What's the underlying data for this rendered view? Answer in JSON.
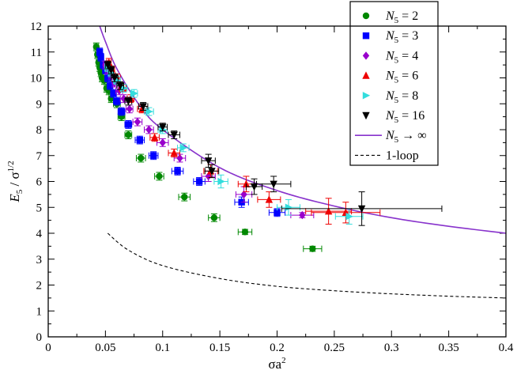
{
  "chart_data": {
    "type": "scatter",
    "title": "",
    "xlabel": "σa",
    "xlabel_sup": "2",
    "ylabel_main": "E",
    "ylabel_sub": "5",
    "ylabel_tail": " / σ",
    "ylabel_sup": "1/2",
    "xlim": [
      0,
      0.4
    ],
    "ylim": [
      0,
      12
    ],
    "xticks": [
      "0",
      "0.05",
      "0.1",
      "0.15",
      "0.2",
      "0.25",
      "0.3",
      "0.35",
      "0.4"
    ],
    "yticks": [
      "0",
      "1",
      "2",
      "3",
      "4",
      "5",
      "6",
      "7",
      "8",
      "9",
      "10",
      "11",
      "12"
    ],
    "legend_position": "top-right",
    "series": [
      {
        "name": "N5 = 2",
        "label": "N",
        "sub": "5",
        "value": " = 2",
        "marker": "circle",
        "color": "#008800",
        "points": [
          [
            0.042,
            11.2
          ],
          [
            0.043,
            10.9
          ],
          [
            0.044,
            10.6
          ],
          [
            0.045,
            10.4
          ],
          [
            0.046,
            10.2
          ],
          [
            0.047,
            10.0
          ],
          [
            0.049,
            9.9
          ],
          [
            0.051,
            9.6
          ],
          [
            0.053,
            9.5
          ],
          [
            0.055,
            9.2
          ],
          [
            0.06,
            9.0
          ],
          [
            0.064,
            8.5
          ],
          [
            0.07,
            7.8
          ],
          [
            0.081,
            6.9
          ],
          [
            0.097,
            6.2
          ],
          [
            0.119,
            5.4
          ],
          [
            0.145,
            4.6
          ],
          [
            0.172,
            4.05
          ],
          [
            0.231,
            3.4
          ]
        ],
        "xerr": [
          0.002,
          0.002,
          0.002,
          0.002,
          0.002,
          0.002,
          0.002,
          0.002,
          0.002,
          0.002,
          0.003,
          0.003,
          0.003,
          0.004,
          0.004,
          0.005,
          0.005,
          0.006,
          0.008
        ],
        "yerr": [
          0.15,
          0.15,
          0.15,
          0.15,
          0.15,
          0.15,
          0.15,
          0.15,
          0.15,
          0.15,
          0.15,
          0.15,
          0.15,
          0.15,
          0.15,
          0.15,
          0.15,
          0.1,
          0.1
        ]
      },
      {
        "name": "N5 = 3",
        "label": "N",
        "sub": "5",
        "value": " = 3",
        "marker": "square",
        "color": "#0000ff",
        "points": [
          [
            0.045,
            11.0
          ],
          [
            0.046,
            10.8
          ],
          [
            0.048,
            10.5
          ],
          [
            0.05,
            10.3
          ],
          [
            0.052,
            10.0
          ],
          [
            0.054,
            9.7
          ],
          [
            0.057,
            9.4
          ],
          [
            0.06,
            9.1
          ],
          [
            0.064,
            8.7
          ],
          [
            0.07,
            8.2
          ],
          [
            0.08,
            7.6
          ],
          [
            0.092,
            7.0
          ],
          [
            0.113,
            6.4
          ],
          [
            0.132,
            6.0
          ],
          [
            0.169,
            5.2
          ],
          [
            0.2,
            4.8
          ]
        ],
        "xerr": [
          0.002,
          0.002,
          0.002,
          0.002,
          0.002,
          0.002,
          0.002,
          0.003,
          0.003,
          0.003,
          0.004,
          0.004,
          0.005,
          0.005,
          0.006,
          0.007
        ],
        "yerr": [
          0.15,
          0.15,
          0.15,
          0.15,
          0.15,
          0.15,
          0.15,
          0.15,
          0.15,
          0.15,
          0.15,
          0.15,
          0.15,
          0.15,
          0.2,
          0.15
        ]
      },
      {
        "name": "N5 = 4",
        "label": "N",
        "sub": "5",
        "value": " = 4",
        "marker": "diamond",
        "color": "#9900cc",
        "points": [
          [
            0.05,
            10.5
          ],
          [
            0.052,
            10.3
          ],
          [
            0.055,
            10.1
          ],
          [
            0.058,
            9.8
          ],
          [
            0.062,
            9.5
          ],
          [
            0.066,
            9.2
          ],
          [
            0.071,
            8.8
          ],
          [
            0.078,
            8.3
          ],
          [
            0.088,
            8.0
          ],
          [
            0.1,
            7.5
          ],
          [
            0.115,
            6.9
          ],
          [
            0.14,
            6.2
          ],
          [
            0.171,
            5.5
          ],
          [
            0.222,
            4.7
          ]
        ],
        "xerr": [
          0.002,
          0.002,
          0.002,
          0.002,
          0.003,
          0.003,
          0.003,
          0.004,
          0.004,
          0.005,
          0.005,
          0.006,
          0.007,
          0.01
        ],
        "yerr": [
          0.15,
          0.15,
          0.15,
          0.15,
          0.15,
          0.15,
          0.15,
          0.15,
          0.15,
          0.15,
          0.15,
          0.2,
          0.3,
          0.1
        ]
      },
      {
        "name": "N5 = 6",
        "label": "N",
        "sub": "5",
        "value": " = 6",
        "marker": "triangle-up",
        "color": "#ee0000",
        "points": [
          [
            0.053,
            10.6
          ],
          [
            0.056,
            10.3
          ],
          [
            0.06,
            10.0
          ],
          [
            0.065,
            9.6
          ],
          [
            0.072,
            9.2
          ],
          [
            0.082,
            8.8
          ],
          [
            0.093,
            7.7
          ],
          [
            0.11,
            7.1
          ],
          [
            0.142,
            6.4
          ],
          [
            0.173,
            5.9
          ],
          [
            0.193,
            5.3
          ],
          [
            0.245,
            4.85
          ],
          [
            0.26,
            4.8
          ]
        ],
        "xerr": [
          0.002,
          0.002,
          0.003,
          0.003,
          0.003,
          0.004,
          0.004,
          0.005,
          0.006,
          0.007,
          0.01,
          0.02,
          0.03
        ],
        "yerr": [
          0.15,
          0.15,
          0.15,
          0.15,
          0.15,
          0.15,
          0.15,
          0.15,
          0.25,
          0.3,
          0.3,
          0.5,
          0.4
        ]
      },
      {
        "name": "N5 = 8",
        "label": "N",
        "sub": "5",
        "value": " = 8",
        "marker": "triangle-right",
        "color": "#33dddd",
        "points": [
          [
            0.052,
            10.4
          ],
          [
            0.055,
            10.2
          ],
          [
            0.06,
            9.9
          ],
          [
            0.066,
            9.6
          ],
          [
            0.075,
            9.4
          ],
          [
            0.088,
            8.7
          ],
          [
            0.1,
            8.0
          ],
          [
            0.118,
            7.3
          ],
          [
            0.151,
            6.0
          ],
          [
            0.21,
            5.0
          ],
          [
            0.263,
            4.65
          ]
        ],
        "xerr": [
          0.002,
          0.002,
          0.003,
          0.003,
          0.003,
          0.004,
          0.004,
          0.005,
          0.006,
          0.01,
          0.012
        ],
        "yerr": [
          0.15,
          0.15,
          0.15,
          0.15,
          0.15,
          0.15,
          0.15,
          0.15,
          0.25,
          0.3,
          0.3
        ]
      },
      {
        "name": "N5 = 16",
        "label": "N",
        "sub": "5",
        "value": " = 16",
        "marker": "triangle-down",
        "color": "#000000",
        "points": [
          [
            0.052,
            10.5
          ],
          [
            0.055,
            10.3
          ],
          [
            0.058,
            10.0
          ],
          [
            0.063,
            9.7
          ],
          [
            0.07,
            9.1
          ],
          [
            0.083,
            8.9
          ],
          [
            0.1,
            8.1
          ],
          [
            0.11,
            7.8
          ],
          [
            0.14,
            6.8
          ],
          [
            0.143,
            6.4
          ],
          [
            0.18,
            5.8
          ],
          [
            0.197,
            5.9
          ],
          [
            0.274,
            4.95
          ]
        ],
        "xerr": [
          0.002,
          0.002,
          0.003,
          0.003,
          0.003,
          0.004,
          0.004,
          0.005,
          0.006,
          0.006,
          0.007,
          0.015,
          0.07
        ],
        "yerr": [
          0.15,
          0.15,
          0.15,
          0.15,
          0.15,
          0.15,
          0.15,
          0.15,
          0.25,
          0.25,
          0.3,
          0.3,
          0.65
        ]
      },
      {
        "name": "N5 → ∞",
        "label": "N",
        "sub": "5",
        "value": " → ∞",
        "marker": "line",
        "color": "#8833cc",
        "curve": {
          "x_from": 0.045,
          "x_to": 0.4,
          "points": [
            [
              0.045,
              12.0
            ],
            [
              0.05,
              11.4
            ],
            [
              0.06,
              10.35
            ],
            [
              0.08,
              8.93
            ],
            [
              0.1,
              8.0
            ],
            [
              0.15,
              6.53
            ],
            [
              0.2,
              5.65
            ],
            [
              0.25,
              5.05
            ],
            [
              0.3,
              4.6
            ],
            [
              0.35,
              4.27
            ],
            [
              0.4,
              4.0
            ]
          ]
        }
      },
      {
        "name": "1-loop",
        "label": "1-loop",
        "sub": "",
        "value": "",
        "marker": "dashed",
        "color": "#000000",
        "curve": {
          "x_from": 0.052,
          "x_to": 0.4,
          "points": [
            [
              0.052,
              4.0
            ],
            [
              0.07,
              3.35
            ],
            [
              0.1,
              2.75
            ],
            [
              0.15,
              2.25
            ],
            [
              0.2,
              1.95
            ],
            [
              0.25,
              1.78
            ],
            [
              0.3,
              1.66
            ],
            [
              0.35,
              1.57
            ],
            [
              0.4,
              1.5
            ]
          ]
        }
      }
    ]
  }
}
